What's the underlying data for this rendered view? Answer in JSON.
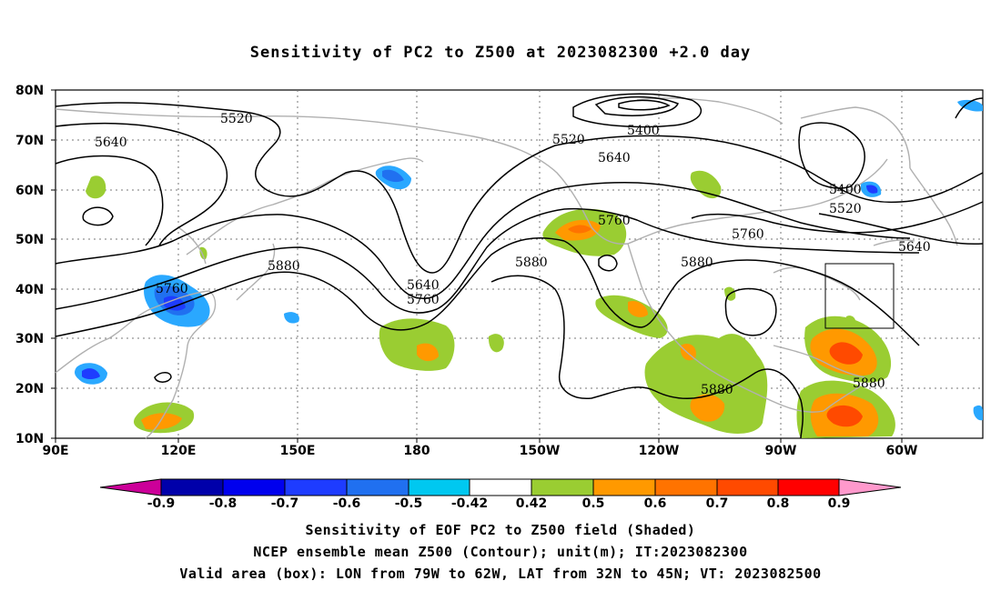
{
  "title": "Sensitivity of PC2 to Z500 at 2023082300 +2.0 day",
  "map": {
    "lat_ticks": [
      "80N",
      "70N",
      "60N",
      "50N",
      "40N",
      "30N",
      "20N",
      "10N"
    ],
    "lon_ticks": [
      "90E",
      "120E",
      "150E",
      "180",
      "150W",
      "120W",
      "90W",
      "60W"
    ],
    "contour_labels": [
      "5520",
      "5640",
      "5400",
      "5520",
      "5640",
      "5400",
      "5520",
      "5760",
      "5760",
      "5640",
      "5880",
      "5640",
      "5760",
      "5880",
      "5880",
      "5760",
      "5880",
      "5880"
    ],
    "contour_color": "#000000",
    "coastline_color": "#b0b0b0",
    "valid_box": {
      "lon": [
        "79W",
        "62W"
      ],
      "lat": [
        "32N",
        "45N"
      ]
    }
  },
  "colorbar": {
    "labels": [
      "-0.9",
      "-0.8",
      "-0.7",
      "-0.6",
      "-0.5",
      "-0.42",
      "0.42",
      "0.5",
      "0.6",
      "0.7",
      "0.8",
      "0.9"
    ],
    "colors": [
      "#cc0099",
      "#0000aa",
      "#0000ee",
      "#1e3cff",
      "#2070f0",
      "#2aa8ff",
      "#00c8f0",
      "#ffffff",
      "#9acd32",
      "#ff9900",
      "#ff7300",
      "#ff4a00",
      "#ff1800",
      "#ff0000",
      "#ff99cc"
    ]
  },
  "captions": {
    "line1": "Sensitivity of EOF PC2 to Z500 field (Shaded)",
    "line2": "NCEP ensemble mean Z500 (Contour); unit(m); IT:2023082300",
    "line3": "Valid area (box): LON from 79W to 62W, LAT from 32N to 45N; VT: 2023082500"
  }
}
